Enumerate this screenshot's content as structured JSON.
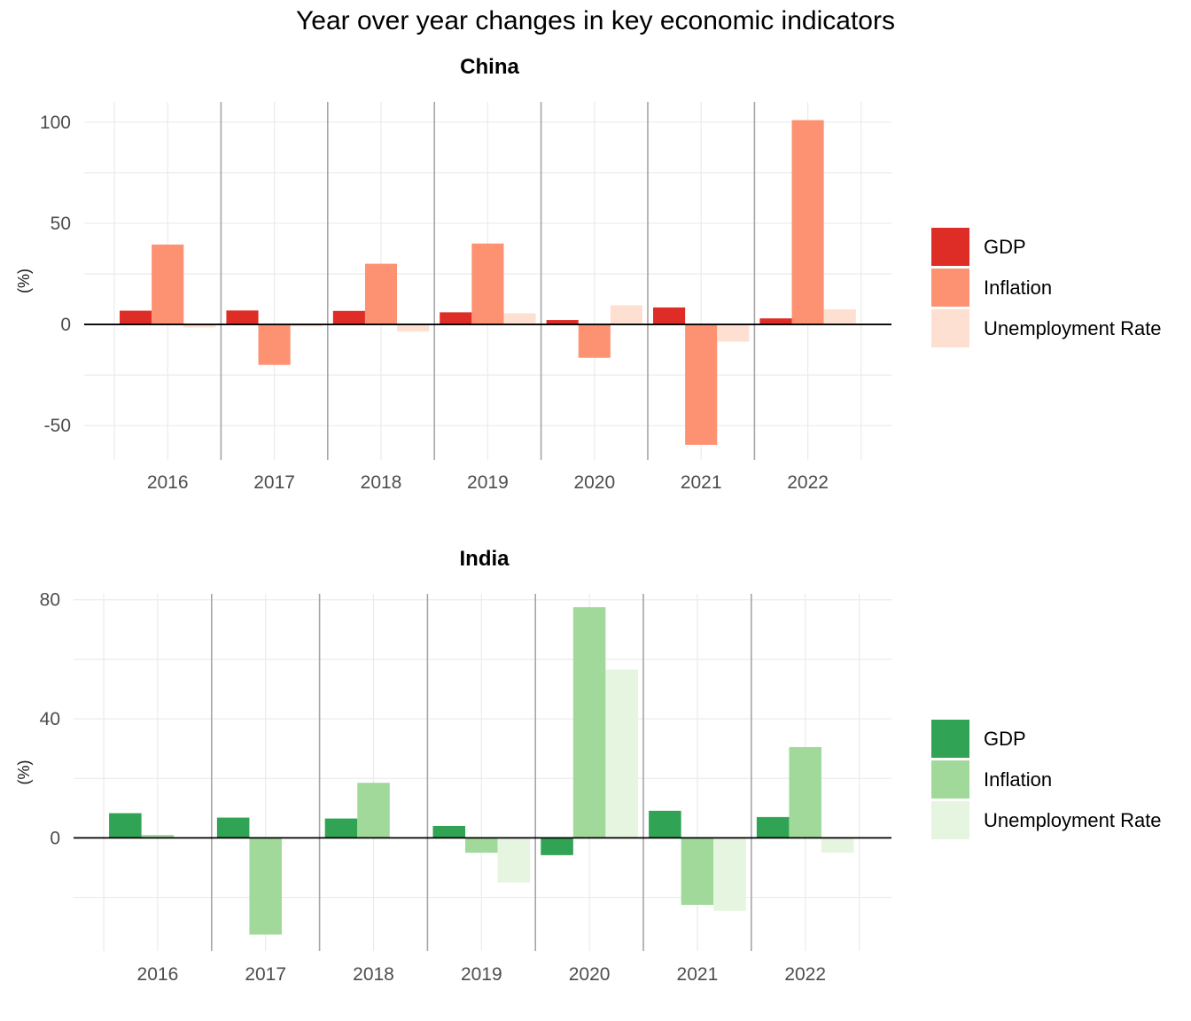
{
  "title": "Year over year changes in key economic indicators",
  "chart_data": [
    {
      "type": "bar",
      "title": "China",
      "ylabel": "(%)",
      "xlabel": "",
      "categories": [
        "2016",
        "2017",
        "2018",
        "2019",
        "2020",
        "2021",
        "2022"
      ],
      "ylim": [
        -67,
        110
      ],
      "yticks": [
        -50,
        0,
        50,
        100
      ],
      "grid": true,
      "legend_position": "right",
      "series": [
        {
          "name": "GDP",
          "color": "#de2d26",
          "values": [
            6.8,
            6.9,
            6.7,
            6.0,
            2.2,
            8.4,
            3.0
          ]
        },
        {
          "name": "Inflation",
          "color": "#fc9272",
          "values": [
            39.5,
            -20.0,
            30.0,
            40.0,
            -16.5,
            -59.5,
            101.0
          ]
        },
        {
          "name": "Unemployment Rate",
          "color": "#fee0d2",
          "values": [
            -1.5,
            -1.0,
            -3.5,
            5.5,
            9.5,
            -8.5,
            7.5
          ]
        }
      ]
    },
    {
      "type": "bar",
      "title": "India",
      "ylabel": "(%)",
      "xlabel": "",
      "categories": [
        "2016",
        "2017",
        "2018",
        "2019",
        "2020",
        "2021",
        "2022"
      ],
      "ylim": [
        -38,
        82
      ],
      "yticks": [
        0,
        40,
        80
      ],
      "grid": true,
      "legend_position": "right",
      "series": [
        {
          "name": "GDP",
          "color": "#31a354",
          "values": [
            8.3,
            6.8,
            6.5,
            4.0,
            -5.8,
            9.1,
            7.0
          ]
        },
        {
          "name": "Inflation",
          "color": "#a1d99b",
          "values": [
            1.0,
            -32.5,
            18.5,
            -5.0,
            77.5,
            -22.5,
            30.5
          ]
        },
        {
          "name": "Unemployment Rate",
          "color": "#e5f5e0",
          "values": [
            0.2,
            0.0,
            0.0,
            -15.0,
            56.5,
            -24.5,
            -5.0
          ]
        }
      ]
    }
  ]
}
